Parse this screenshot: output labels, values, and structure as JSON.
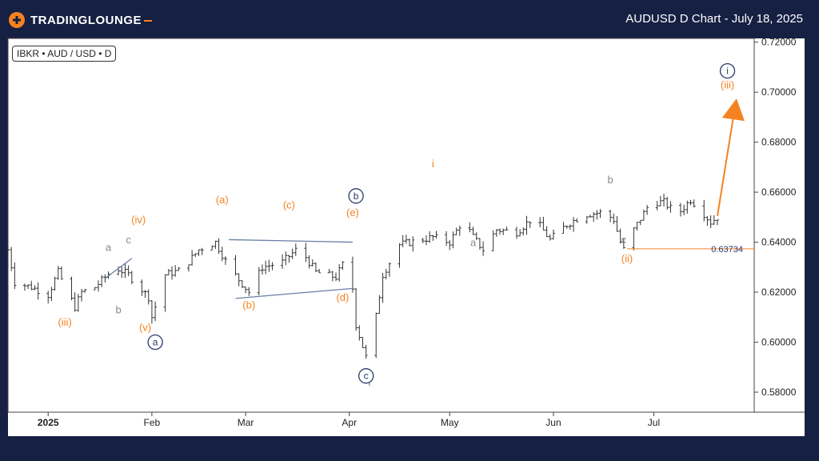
{
  "header": {
    "logo_text_a": "TRADING",
    "logo_text_b": "LOUNGE",
    "title": "AUDUSD D Chart - July 18, 2025"
  },
  "symbol_label": "IBKR • AUD / USD • D",
  "colors": {
    "background": "#152042",
    "orange": "#f58220",
    "navy": "#2a3a6b",
    "gray": "#888888",
    "bar": "#333333"
  },
  "chart_data": {
    "type": "ohlc",
    "y_ticks": [
      "0.72000",
      "0.70000",
      "0.68000",
      "0.66000",
      "0.64000",
      "0.62000",
      "0.60000",
      "0.58000"
    ],
    "y_tick_values": [
      0.72,
      0.7,
      0.68,
      0.66,
      0.64,
      0.62,
      0.6,
      0.58
    ],
    "ylim": [
      0.572,
      0.7215
    ],
    "x_ticks": [
      {
        "label": "2025",
        "day": 0
      },
      {
        "label": "Feb",
        "day": 31
      },
      {
        "label": "Mar",
        "day": 59
      },
      {
        "label": "Apr",
        "day": 90
      },
      {
        "label": "May",
        "day": 120
      },
      {
        "label": "Jun",
        "day": 151
      },
      {
        "label": "Jul",
        "day": 181
      }
    ],
    "xlim": [
      -12,
      211
    ],
    "price_marker": {
      "label": "0.63734",
      "value": 0.63734,
      "start_day": 173
    },
    "closes_anchor": [
      {
        "day": -12,
        "v": 0.637
      },
      {
        "day": -10,
        "v": 0.624
      },
      {
        "day": -5,
        "v": 0.622
      },
      {
        "day": 0,
        "v": 0.619
      },
      {
        "day": 3,
        "v": 0.628
      },
      {
        "day": 8,
        "v": 0.614
      },
      {
        "day": 10,
        "v": 0.62
      },
      {
        "day": 14,
        "v": 0.622
      },
      {
        "day": 20,
        "v": 0.63
      },
      {
        "day": 24,
        "v": 0.627
      },
      {
        "day": 30,
        "v": 0.618
      },
      {
        "day": 31,
        "v": 0.61
      },
      {
        "day": 35,
        "v": 0.627
      },
      {
        "day": 40,
        "v": 0.629
      },
      {
        "day": 45,
        "v": 0.637
      },
      {
        "day": 50,
        "v": 0.64
      },
      {
        "day": 54,
        "v": 0.63
      },
      {
        "day": 60,
        "v": 0.62
      },
      {
        "day": 64,
        "v": 0.63
      },
      {
        "day": 70,
        "v": 0.632
      },
      {
        "day": 75,
        "v": 0.638
      },
      {
        "day": 80,
        "v": 0.628
      },
      {
        "day": 86,
        "v": 0.626
      },
      {
        "day": 90,
        "v": 0.636
      },
      {
        "day": 92,
        "v": 0.607
      },
      {
        "day": 95,
        "v": 0.594
      },
      {
        "day": 97,
        "v": 0.602
      },
      {
        "day": 100,
        "v": 0.627
      },
      {
        "day": 105,
        "v": 0.639
      },
      {
        "day": 115,
        "v": 0.642
      },
      {
        "day": 120,
        "v": 0.64
      },
      {
        "day": 124,
        "v": 0.649
      },
      {
        "day": 127,
        "v": 0.642
      },
      {
        "day": 130,
        "v": 0.637
      },
      {
        "day": 134,
        "v": 0.645
      },
      {
        "day": 140,
        "v": 0.644
      },
      {
        "day": 145,
        "v": 0.65
      },
      {
        "day": 150,
        "v": 0.641
      },
      {
        "day": 155,
        "v": 0.647
      },
      {
        "day": 160,
        "v": 0.651
      },
      {
        "day": 166,
        "v": 0.652
      },
      {
        "day": 169,
        "v": 0.649
      },
      {
        "day": 171,
        "v": 0.64
      },
      {
        "day": 172,
        "v": 0.637
      },
      {
        "day": 175,
        "v": 0.645
      },
      {
        "day": 180,
        "v": 0.656
      },
      {
        "day": 184,
        "v": 0.656
      },
      {
        "day": 188,
        "v": 0.651
      },
      {
        "day": 192,
        "v": 0.657
      },
      {
        "day": 195,
        "v": 0.653
      },
      {
        "day": 198,
        "v": 0.648
      },
      {
        "day": 200,
        "v": 0.65
      }
    ],
    "lines": [
      {
        "name": "triangle-upper",
        "x1": 54,
        "y1": 0.641,
        "x2": 91,
        "y2": 0.64,
        "color": "#6a7fa8"
      },
      {
        "name": "triangle-lower",
        "x1": 56,
        "y1": 0.6175,
        "x2": 91,
        "y2": 0.6215,
        "color": "#6a7fa8"
      },
      {
        "name": "abc-line",
        "x1": 17,
        "y1": 0.6255,
        "x2": 25,
        "y2": 0.6335,
        "color": "#6a7fa8"
      },
      {
        "name": "projection-arrow",
        "x1": 200,
        "y1": 0.6505,
        "x2": 205,
        "y2": 0.692,
        "color": "#f58220"
      }
    ],
    "labels": [
      {
        "text": "(iii)",
        "day": 5,
        "v": 0.6065,
        "color": "#f58220"
      },
      {
        "text": "a",
        "day": 18,
        "v": 0.6365,
        "color": "#888888"
      },
      {
        "text": "b",
        "day": 21,
        "v": 0.6115,
        "color": "#888888"
      },
      {
        "text": "c",
        "day": 24,
        "v": 0.6395,
        "color": "#888888"
      },
      {
        "text": "(iv)",
        "day": 27,
        "v": 0.6475,
        "color": "#f58220"
      },
      {
        "text": "(v)",
        "day": 29,
        "v": 0.6045,
        "color": "#f58220"
      },
      {
        "text": "(a)",
        "day": 52,
        "v": 0.6555,
        "color": "#f58220"
      },
      {
        "text": "(b)",
        "day": 60,
        "v": 0.6135,
        "color": "#f58220"
      },
      {
        "text": "(c)",
        "day": 72,
        "v": 0.6535,
        "color": "#f58220"
      },
      {
        "text": "(d)",
        "day": 88,
        "v": 0.6165,
        "color": "#f58220"
      },
      {
        "text": "(e)",
        "day": 91,
        "v": 0.6505,
        "color": "#f58220"
      },
      {
        "text": "i",
        "day": 115,
        "v": 0.67,
        "color": "#f58220"
      },
      {
        "text": "a",
        "day": 127,
        "v": 0.6385,
        "color": "#888888"
      },
      {
        "text": "b",
        "day": 168,
        "v": 0.6635,
        "color": "#888888"
      },
      {
        "text": "c",
        "day": 172,
        "v": 0.6395,
        "color": "#888888"
      },
      {
        "text": "(ii)",
        "day": 173,
        "v": 0.632,
        "color": "#f58220"
      },
      {
        "text": "(iii)",
        "day": 203,
        "v": 0.7015,
        "color": "#f58220"
      },
      {
        "text": "Y",
        "day": 96,
        "v": 0.5825,
        "color": "#888888"
      }
    ],
    "circled_labels": [
      {
        "text": "a",
        "day": 32,
        "v": 0.6
      },
      {
        "text": "b",
        "day": 92,
        "v": 0.6585
      },
      {
        "text": "c",
        "day": 95,
        "v": 0.5865
      },
      {
        "text": "i",
        "day": 203,
        "v": 0.7085
      }
    ]
  }
}
